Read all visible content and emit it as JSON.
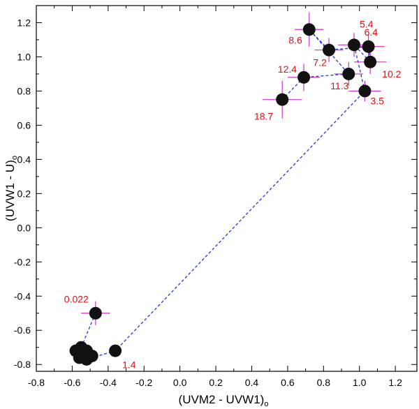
{
  "chart_data": {
    "type": "scatter",
    "title": "",
    "xlabel": "(UVM2 - UVW1)",
    "xlabel_sub": "o",
    "ylabel": "(UVW1 - U)",
    "ylabel_sub": "o",
    "xlim": [
      -0.8,
      1.32
    ],
    "ylim": [
      -0.84,
      1.3
    ],
    "xticks": [
      -0.8,
      -0.6,
      -0.4,
      -0.2,
      0.0,
      0.2,
      0.4,
      0.6,
      0.8,
      1.0,
      1.2
    ],
    "xtick_labels": [
      "-0.8",
      "-0.6",
      "-0.4",
      "-0.2",
      "0.0",
      "0.2",
      "0.4",
      "0.6",
      "0.8",
      "1.0",
      "1.2"
    ],
    "yticks": [
      -0.8,
      -0.6,
      -0.4,
      -0.2,
      0.0,
      0.2,
      0.4,
      0.6,
      0.8,
      1.0,
      1.2
    ],
    "ytick_labels": [
      "-0.8",
      "-0.6",
      "-0.4",
      "-0.2",
      "0.0",
      "0.2",
      "0.4",
      "0.6",
      "0.8",
      "1.0",
      "1.2"
    ],
    "grid": false,
    "colors": {
      "marker": "#111111",
      "errorbar": "#cc33cc",
      "line": "#2233dd",
      "label": "#dd1111"
    },
    "points": [
      {
        "x": -0.47,
        "y": -0.5,
        "xerr": 0.08,
        "yerr": 0.07,
        "label": "0.022"
      },
      {
        "x": -0.55,
        "y": -0.7,
        "xerr": 0.03,
        "yerr": 0.03,
        "label": ""
      },
      {
        "x": -0.52,
        "y": -0.72,
        "xerr": 0.03,
        "yerr": 0.03,
        "label": ""
      },
      {
        "x": -0.58,
        "y": -0.72,
        "xerr": 0.03,
        "yerr": 0.03,
        "label": ""
      },
      {
        "x": -0.53,
        "y": -0.75,
        "xerr": 0.03,
        "yerr": 0.03,
        "label": ""
      },
      {
        "x": -0.56,
        "y": -0.76,
        "xerr": 0.03,
        "yerr": 0.03,
        "label": ""
      },
      {
        "x": -0.49,
        "y": -0.75,
        "xerr": 0.03,
        "yerr": 0.03,
        "label": ""
      },
      {
        "x": -0.52,
        "y": -0.77,
        "xerr": 0.03,
        "yerr": 0.03,
        "label": ""
      },
      {
        "x": -0.36,
        "y": -0.72,
        "xerr": 0.03,
        "yerr": 0.03,
        "label": "1.4"
      },
      {
        "x": 1.03,
        "y": 0.8,
        "xerr": 0.09,
        "yerr": 0.06,
        "label": "3.5"
      },
      {
        "x": 0.97,
        "y": 1.07,
        "xerr": 0.09,
        "yerr": 0.07,
        "label": "5.4"
      },
      {
        "x": 1.06,
        "y": 0.97,
        "xerr": 0.09,
        "yerr": 0.07,
        "label": "10.2"
      },
      {
        "x": 1.05,
        "y": 1.06,
        "xerr": 0.09,
        "yerr": 0.07,
        "label": "6.4"
      },
      {
        "x": 0.83,
        "y": 1.04,
        "xerr": 0.08,
        "yerr": 0.07,
        "label": "7.2"
      },
      {
        "x": 0.72,
        "y": 1.16,
        "xerr": 0.08,
        "yerr": 0.1,
        "label": "8.6"
      },
      {
        "x": 0.94,
        "y": 0.9,
        "xerr": 0.08,
        "yerr": 0.07,
        "label": "11.3"
      },
      {
        "x": 0.69,
        "y": 0.88,
        "xerr": 0.09,
        "yerr": 0.08,
        "label": "12.4"
      },
      {
        "x": 0.57,
        "y": 0.75,
        "xerr": 0.11,
        "yerr": 0.11,
        "label": "18.7"
      }
    ]
  }
}
